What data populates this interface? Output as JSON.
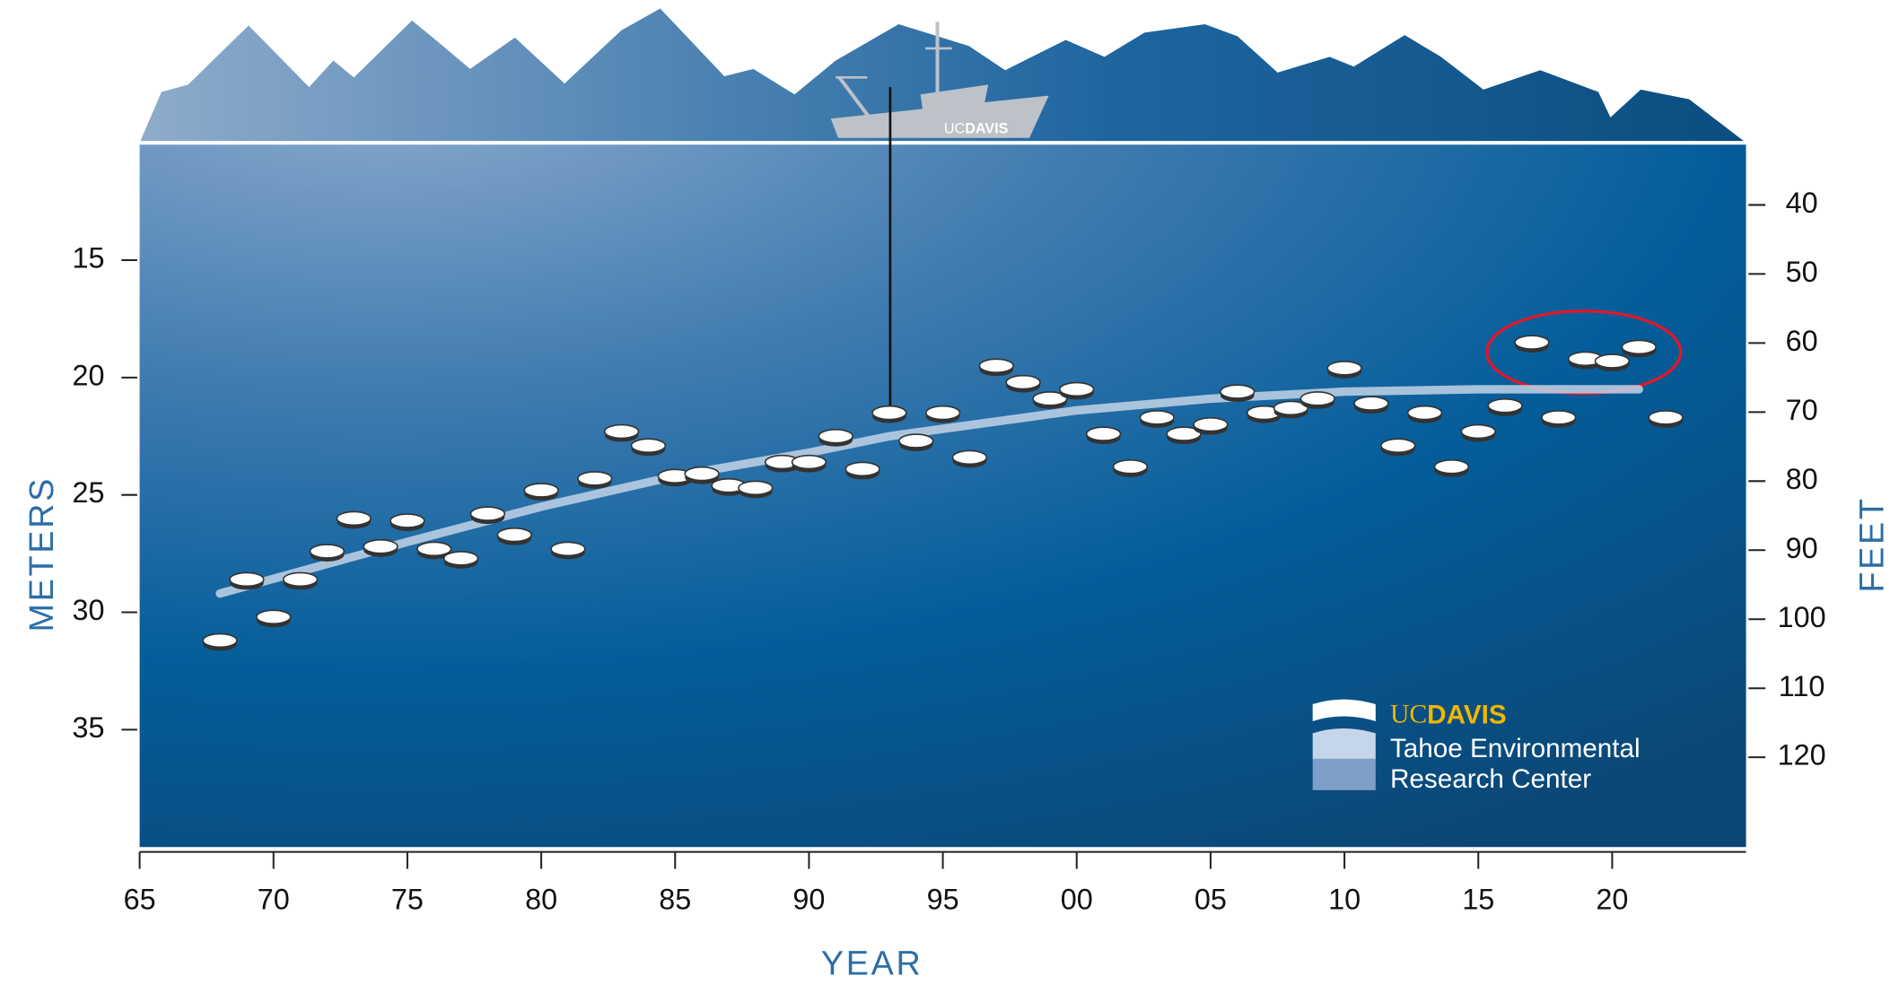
{
  "chart_data": {
    "type": "scatter",
    "x": [
      1968,
      1969,
      1970,
      1971,
      1972,
      1973,
      1974,
      1975,
      1976,
      1977,
      1978,
      1979,
      1980,
      1981,
      1982,
      1983,
      1984,
      1985,
      1986,
      1987,
      1988,
      1989,
      1990,
      1991,
      1992,
      1993,
      1994,
      1995,
      1996,
      1997,
      1998,
      1999,
      2000,
      2001,
      2002,
      2003,
      2004,
      2005,
      2006,
      2007,
      2008,
      2009,
      2010,
      2011,
      2012,
      2013,
      2014,
      2015,
      2016,
      2017,
      2018,
      2019,
      2020,
      2021,
      2022
    ],
    "values": [
      31.2,
      28.6,
      30.2,
      28.6,
      27.4,
      26.0,
      27.2,
      26.1,
      27.3,
      27.7,
      25.8,
      26.7,
      24.8,
      27.3,
      24.3,
      22.3,
      22.9,
      24.2,
      24.1,
      24.6,
      24.7,
      23.6,
      23.6,
      22.5,
      23.9,
      21.5,
      22.7,
      21.5,
      23.4,
      19.5,
      20.2,
      20.9,
      20.5,
      22.4,
      23.8,
      21.7,
      22.4,
      22.0,
      20.6,
      21.5,
      21.3,
      20.9,
      19.6,
      21.1,
      22.9,
      21.5,
      23.8,
      22.3,
      21.2,
      18.5,
      21.7,
      19.2,
      19.3,
      18.7,
      21.7
    ],
    "color": "#ffffff",
    "trend": {
      "x": [
        1968,
        1975,
        1980,
        1985,
        1990,
        1993,
        2000,
        2005,
        2010,
        2015,
        2021
      ],
      "values": [
        29.2,
        27.0,
        25.5,
        24.2,
        23.2,
        22.5,
        21.4,
        20.9,
        20.6,
        20.5,
        20.5
      ],
      "color": "#c3d3e6"
    },
    "xlabel": "YEAR",
    "ylabel": "METERS",
    "y2label": "FEET",
    "xlim": [
      1965,
      2025
    ],
    "xticks": [
      {
        "value": 1965,
        "label": "65"
      },
      {
        "value": 1970,
        "label": "70"
      },
      {
        "value": 1975,
        "label": "75"
      },
      {
        "value": 1980,
        "label": "80"
      },
      {
        "value": 1985,
        "label": "85"
      },
      {
        "value": 1990,
        "label": "90"
      },
      {
        "value": 1995,
        "label": "95"
      },
      {
        "value": 2000,
        "label": "00"
      },
      {
        "value": 2005,
        "label": "05"
      },
      {
        "value": 2010,
        "label": "10"
      },
      {
        "value": 2015,
        "label": "15"
      },
      {
        "value": 2020,
        "label": "20"
      }
    ],
    "ylim": [
      40,
      10
    ],
    "yticks": [
      15,
      20,
      25,
      30,
      35
    ],
    "y2lim": [
      133,
      31
    ],
    "y2ticks": [
      40,
      50,
      60,
      70,
      80,
      90,
      100,
      110,
      120
    ]
  },
  "logo": {
    "uc": "UC",
    "davis": "DAVIS",
    "line1": "Tahoe Environmental",
    "line2": "Research Center"
  },
  "boat": {
    "uc": "UC",
    "davis": "DAVIS"
  }
}
